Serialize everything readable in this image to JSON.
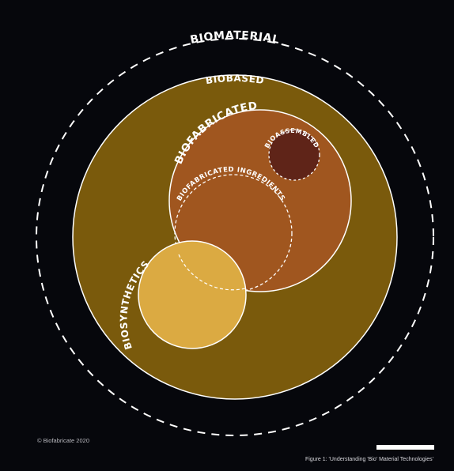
{
  "diagram": {
    "labels": {
      "biomaterial": "BIOMATERIAL",
      "biobased": "BIOBASED",
      "biofabricated": "BIOFABRICATED",
      "bioassembled": "BIOASSEMBLED",
      "biofabricated_ingredients": "BIOFABRICATED INGREDIENTS",
      "biosynthetics": "BIOSYNTHETICS"
    },
    "colors": {
      "background": "#06070c",
      "biobased_fill": "#7a5a0c",
      "biofabricated_fill": "#a0561f",
      "bioassembled_fill": "#5f2418",
      "biosynthetics_fill": "#dbaa42",
      "outline": "#ffffff"
    }
  },
  "footer": {
    "copyright": "© Biofabricate 2020",
    "caption": "Figure 1: 'Understanding  'Bio' Material Technologies'"
  }
}
